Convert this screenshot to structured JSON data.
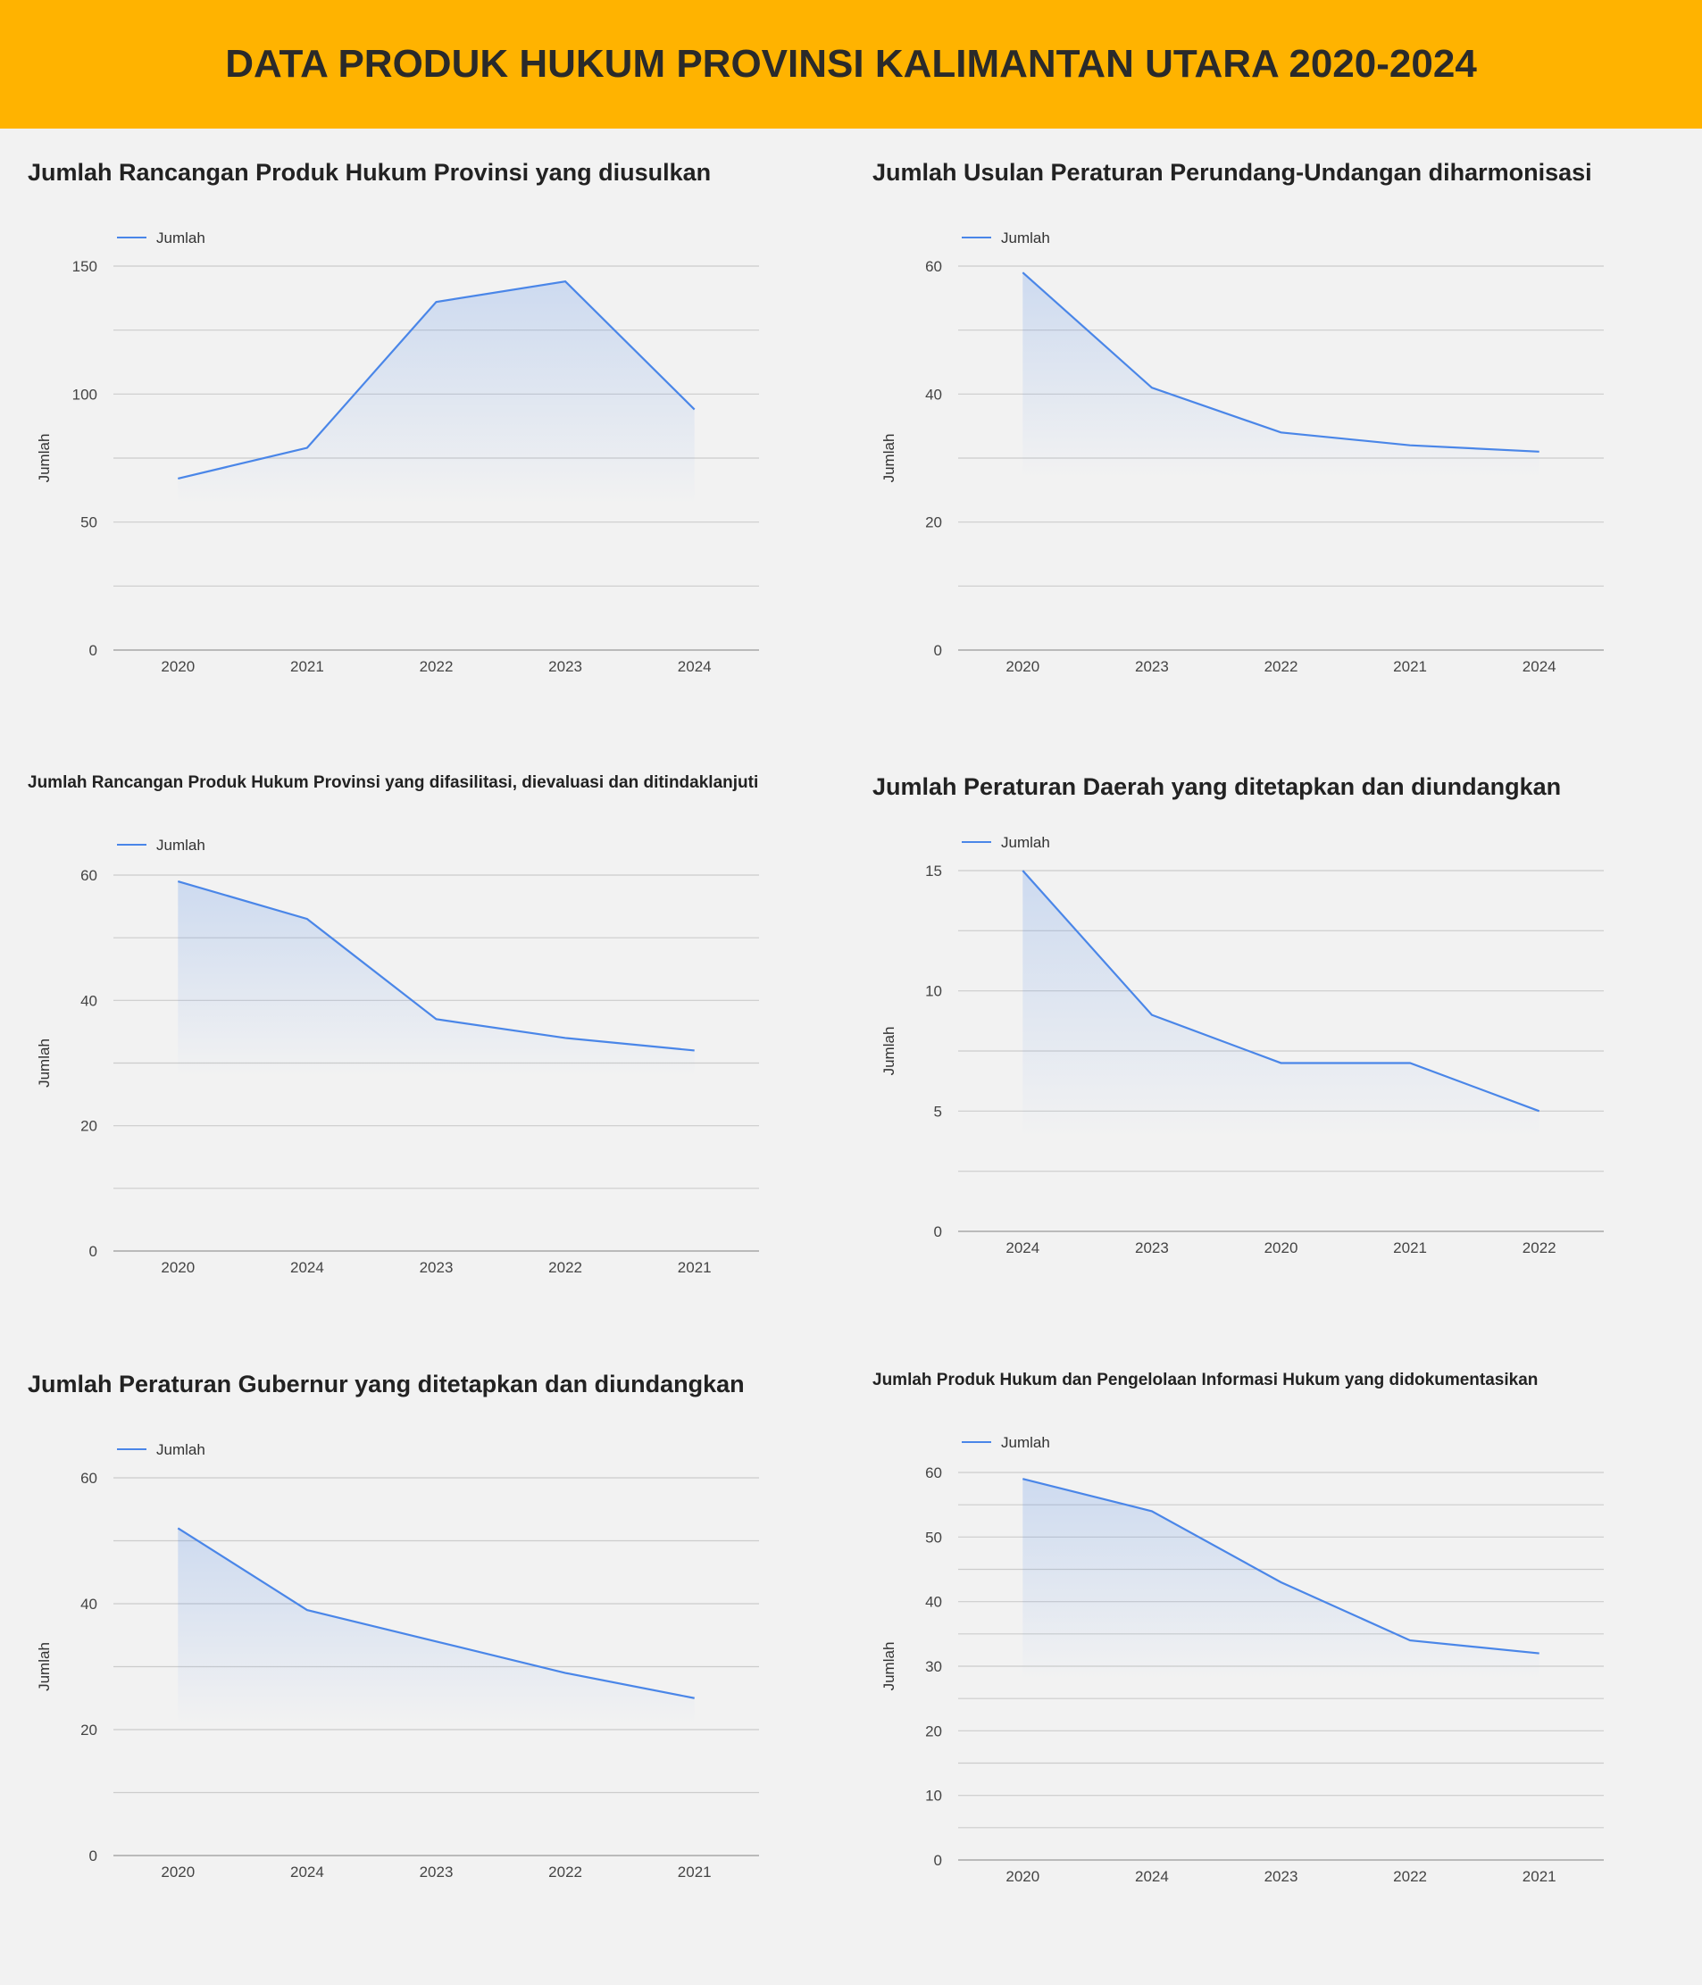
{
  "header": {
    "title": "DATA PRODUK HUKUM PROVINSI KALIMANTAN UTARA 2020-2024"
  },
  "colors": {
    "header_bg": "#ffb300",
    "line": "#4a86e8",
    "grid": "#cccccc",
    "page_bg": "#f2f2f2"
  },
  "chart_data": [
    {
      "type": "area",
      "title": "Jumlah Rancangan Produk Hukum Provinsi yang diusulkan",
      "ylabel": "Jumlah",
      "xlabel": "",
      "legend": "top-left",
      "categories": [
        "2020",
        "2021",
        "2022",
        "2023",
        "2024"
      ],
      "series": [
        {
          "name": "Jumlah",
          "values": [
            67,
            79,
            136,
            144,
            94
          ]
        }
      ],
      "ylim": [
        0,
        150
      ],
      "yticks": [
        0,
        50,
        100,
        150
      ],
      "grid": true
    },
    {
      "type": "area",
      "title": "Jumlah Usulan Peraturan Perundang-Undangan diharmonisasi",
      "ylabel": "Jumlah",
      "xlabel": "",
      "legend": "top-left",
      "categories": [
        "2020",
        "2023",
        "2022",
        "2021",
        "2024"
      ],
      "series": [
        {
          "name": "Jumlah",
          "values": [
            59,
            41,
            34,
            32,
            31
          ]
        }
      ],
      "ylim": [
        0,
        60
      ],
      "yticks": [
        0,
        20,
        40,
        60
      ],
      "grid": true
    },
    {
      "type": "area",
      "title": "Jumlah Rancangan Produk Hukum Provinsi yang difasilitasi, dievaluasi dan ditindaklanjuti",
      "ylabel": "Jumlah",
      "xlabel": "",
      "legend": "top-left",
      "categories": [
        "2020",
        "2024",
        "2023",
        "2022",
        "2021"
      ],
      "series": [
        {
          "name": "Jumlah",
          "values": [
            59,
            53,
            37,
            34,
            32
          ]
        }
      ],
      "ylim": [
        0,
        60
      ],
      "yticks": [
        0,
        20,
        40,
        60
      ],
      "grid": true
    },
    {
      "type": "area",
      "title": "Jumlah Peraturan Daerah yang ditetapkan dan diundangkan",
      "ylabel": "Jumlah",
      "xlabel": "",
      "legend": "top-left",
      "categories": [
        "2024",
        "2023",
        "2020",
        "2021",
        "2022"
      ],
      "series": [
        {
          "name": "Jumlah",
          "values": [
            15,
            9,
            7,
            7,
            5
          ]
        }
      ],
      "ylim": [
        0,
        15
      ],
      "yticks": [
        0,
        5,
        10,
        15
      ],
      "grid": true
    },
    {
      "type": "area",
      "title": "Jumlah Peraturan Gubernur yang ditetapkan dan diundangkan",
      "ylabel": "Jumlah",
      "xlabel": "",
      "legend": "top-left",
      "categories": [
        "2020",
        "2024",
        "2023",
        "2022",
        "2021"
      ],
      "series": [
        {
          "name": "Jumlah",
          "values": [
            52,
            39,
            34,
            29,
            25
          ]
        }
      ],
      "ylim": [
        0,
        60
      ],
      "yticks": [
        0,
        20,
        40,
        60
      ],
      "grid": true
    },
    {
      "type": "area",
      "title": "Jumlah Produk Hukum dan Pengelolaan Informasi Hukum yang didokumentasikan",
      "ylabel": "Jumlah",
      "xlabel": "",
      "legend": "top-left",
      "categories": [
        "2020",
        "2024",
        "2023",
        "2022",
        "2021"
      ],
      "series": [
        {
          "name": "Jumlah",
          "values": [
            59,
            54,
            43,
            34,
            32
          ]
        }
      ],
      "ylim": [
        0,
        60
      ],
      "yticks": [
        0,
        10,
        20,
        30,
        40,
        50,
        60
      ],
      "grid": true
    }
  ]
}
